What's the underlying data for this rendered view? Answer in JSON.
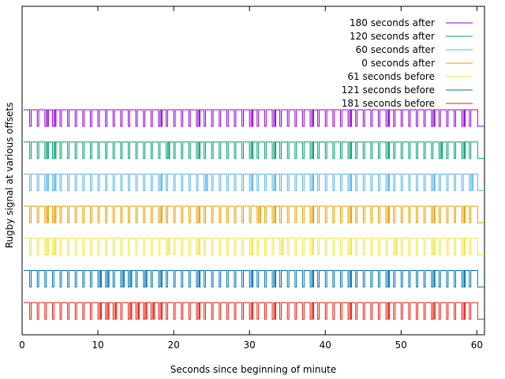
{
  "chart_data": {
    "type": "line",
    "title": "",
    "xlabel": "Seconds since beginning of minute",
    "ylabel": "Rugby signal at various offsets",
    "xlim": [
      0,
      61
    ],
    "xticks": [
      0,
      10,
      20,
      30,
      40,
      50,
      60
    ],
    "grid": false,
    "legend_position": "top-right",
    "series": [
      {
        "name": "180 seconds after",
        "color": "#9400d3",
        "long_pulses_s": [
          1,
          2,
          3,
          4,
          5,
          6,
          7,
          8,
          9,
          10,
          11,
          12,
          13,
          14,
          15,
          16,
          17,
          18,
          19,
          20,
          21,
          22,
          23,
          24,
          25,
          26,
          27,
          28,
          29,
          30,
          31,
          32,
          33,
          34,
          35,
          36,
          37,
          38,
          39,
          40,
          41,
          42,
          43,
          44,
          45,
          46,
          47,
          48,
          49,
          50,
          51,
          52,
          53,
          54,
          55,
          56,
          57,
          58,
          59
        ],
        "extra_pulses_s": [
          3,
          4,
          18,
          23,
          30,
          33,
          38,
          43,
          48,
          54,
          58
        ]
      },
      {
        "name": "120 seconds after",
        "color": "#009e73",
        "long_pulses_s": [
          1,
          2,
          3,
          4,
          5,
          6,
          7,
          8,
          9,
          10,
          11,
          12,
          13,
          14,
          15,
          16,
          17,
          18,
          19,
          20,
          21,
          22,
          23,
          24,
          25,
          26,
          27,
          28,
          29,
          30,
          31,
          32,
          33,
          34,
          35,
          36,
          37,
          38,
          39,
          40,
          41,
          42,
          43,
          44,
          45,
          46,
          47,
          48,
          49,
          50,
          51,
          52,
          53,
          54,
          55,
          56,
          57,
          58,
          59
        ],
        "extra_pulses_s": [
          3,
          4,
          19,
          23,
          30,
          33,
          38,
          43,
          48,
          55,
          58
        ]
      },
      {
        "name": "60 seconds after",
        "color": "#56b4e9",
        "long_pulses_s": [
          1,
          2,
          3,
          4,
          5,
          6,
          7,
          8,
          9,
          10,
          11,
          12,
          13,
          14,
          15,
          16,
          17,
          18,
          19,
          20,
          21,
          22,
          23,
          24,
          25,
          26,
          27,
          28,
          29,
          30,
          31,
          32,
          33,
          34,
          35,
          36,
          37,
          38,
          39,
          40,
          41,
          42,
          43,
          44,
          45,
          46,
          47,
          48,
          49,
          50,
          51,
          52,
          53,
          54,
          55,
          56,
          57,
          58,
          59
        ],
        "extra_pulses_s": [
          3,
          4,
          18,
          24,
          30,
          33,
          38,
          43,
          48,
          54,
          59
        ]
      },
      {
        "name": "0 seconds after",
        "color": "#e69f00",
        "long_pulses_s": [
          1,
          2,
          3,
          4,
          5,
          6,
          7,
          8,
          9,
          10,
          11,
          12,
          13,
          14,
          15,
          16,
          17,
          18,
          19,
          20,
          21,
          22,
          23,
          24,
          25,
          26,
          27,
          28,
          29,
          30,
          31,
          32,
          33,
          34,
          35,
          36,
          37,
          38,
          39,
          40,
          41,
          42,
          43,
          44,
          45,
          46,
          47,
          48,
          49,
          50,
          51,
          52,
          53,
          54,
          55,
          56,
          57,
          58,
          59
        ],
        "extra_pulses_s": [
          3,
          4,
          18,
          23,
          31,
          33,
          38,
          43,
          48,
          54,
          58
        ]
      },
      {
        "name": "61 seconds before",
        "color": "#f0e442",
        "long_pulses_s": [
          1,
          2,
          3,
          4,
          5,
          6,
          7,
          8,
          9,
          10,
          11,
          12,
          13,
          14,
          15,
          16,
          17,
          18,
          19,
          20,
          21,
          22,
          23,
          24,
          25,
          26,
          27,
          28,
          29,
          30,
          31,
          32,
          33,
          34,
          35,
          36,
          37,
          38,
          39,
          40,
          41,
          42,
          43,
          44,
          45,
          46,
          47,
          48,
          49,
          50,
          51,
          52,
          53,
          54,
          55,
          56,
          57,
          58,
          59
        ],
        "extra_pulses_s": [
          3,
          4,
          19,
          23,
          30,
          34,
          38,
          43,
          49,
          54,
          58
        ]
      },
      {
        "name": "121 seconds before",
        "color": "#0072b2",
        "long_pulses_s": [
          1,
          2,
          3,
          4,
          5,
          6,
          7,
          8,
          9,
          10,
          11,
          12,
          13,
          14,
          15,
          16,
          17,
          18,
          19,
          20,
          21,
          22,
          23,
          24,
          25,
          26,
          27,
          28,
          29,
          30,
          31,
          32,
          33,
          34,
          35,
          36,
          37,
          38,
          39,
          40,
          41,
          42,
          43,
          44,
          45,
          46,
          47,
          48,
          49,
          50,
          51,
          52,
          53,
          54,
          55,
          56,
          57,
          58,
          59
        ],
        "extra_pulses_s": [
          10,
          11,
          13,
          14,
          16,
          18,
          23,
          30,
          33,
          38,
          43,
          48,
          54,
          58
        ]
      },
      {
        "name": "181 seconds before",
        "color": "#e51e10",
        "long_pulses_s": [
          1,
          2,
          3,
          4,
          5,
          6,
          7,
          8,
          9,
          10,
          11,
          12,
          13,
          14,
          15,
          16,
          17,
          18,
          19,
          20,
          21,
          22,
          23,
          24,
          25,
          26,
          27,
          28,
          29,
          30,
          31,
          32,
          33,
          34,
          35,
          36,
          37,
          38,
          39,
          40,
          41,
          42,
          43,
          44,
          45,
          46,
          47,
          48,
          49,
          50,
          51,
          52,
          53,
          54,
          55,
          56,
          57,
          58,
          59
        ],
        "extra_pulses_s": [
          10,
          11,
          12,
          14,
          15,
          16,
          17,
          18,
          23,
          30,
          33,
          38,
          43,
          48,
          54,
          58
        ]
      }
    ]
  }
}
